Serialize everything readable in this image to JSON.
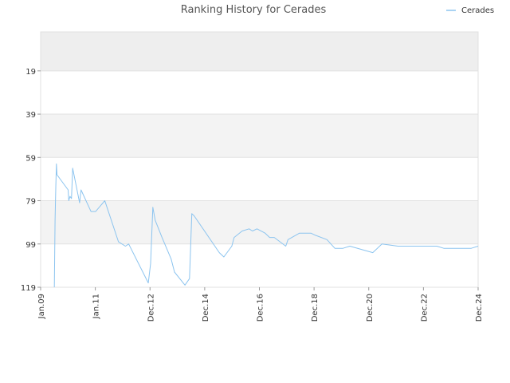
{
  "chart_data": {
    "type": "line",
    "title": "Ranking History for Cerades",
    "xlabel": "",
    "ylabel": "",
    "y_inverted": true,
    "ylim": [
      1,
      119
    ],
    "xlim": [
      "2009-01-01",
      "2024-12-01"
    ],
    "y_ticks": [
      "19",
      "39",
      "59",
      "79",
      "99",
      "119"
    ],
    "x_ticks": [
      "Jan.09",
      "Jan.11",
      "Dec.12",
      "Dec.14",
      "Dec.16",
      "Dec.18",
      "Dec.20",
      "Dec.22",
      "Dec.24"
    ],
    "legend_position": "top-right",
    "band_colors": [
      "#eeeeee",
      "#ffffff",
      "#f3f3f3",
      "#ffffff",
      "#f3f3f3",
      "#ffffff"
    ],
    "grid": true,
    "series": [
      {
        "name": "Cerades",
        "color": "#8cc4ef",
        "points": [
          [
            "2009-07-01",
            119
          ],
          [
            "2009-07-10",
            88
          ],
          [
            "2009-07-20",
            73
          ],
          [
            "2009-07-28",
            62
          ],
          [
            "2009-08-05",
            67
          ],
          [
            "2010-01-01",
            74
          ],
          [
            "2010-01-10",
            79
          ],
          [
            "2010-01-25",
            77
          ],
          [
            "2010-02-15",
            78
          ],
          [
            "2010-03-01",
            64
          ],
          [
            "2010-06-01",
            80
          ],
          [
            "2010-06-20",
            74
          ],
          [
            "2010-11-01",
            84
          ],
          [
            "2011-01-01",
            84
          ],
          [
            "2011-05-01",
            79
          ],
          [
            "2011-11-01",
            98
          ],
          [
            "2012-02-01",
            100
          ],
          [
            "2012-03-15",
            99
          ],
          [
            "2012-12-01",
            117
          ],
          [
            "2013-01-01",
            108
          ],
          [
            "2013-02-01",
            82
          ],
          [
            "2013-03-01",
            88
          ],
          [
            "2013-06-01",
            96
          ],
          [
            "2013-10-01",
            106
          ],
          [
            "2013-11-15",
            112
          ],
          [
            "2014-04-01",
            118
          ],
          [
            "2014-06-01",
            115
          ],
          [
            "2014-07-01",
            85
          ],
          [
            "2014-08-01",
            86
          ],
          [
            "2015-07-01",
            103
          ],
          [
            "2015-09-01",
            105
          ],
          [
            "2015-12-15",
            100
          ],
          [
            "2016-01-15",
            96
          ],
          [
            "2016-05-01",
            93
          ],
          [
            "2016-08-01",
            92
          ],
          [
            "2016-09-15",
            93
          ],
          [
            "2016-11-15",
            92
          ],
          [
            "2017-03-01",
            94
          ],
          [
            "2017-05-01",
            96
          ],
          [
            "2017-07-01",
            96
          ],
          [
            "2017-12-01",
            100
          ],
          [
            "2018-01-01",
            97
          ],
          [
            "2018-06-01",
            94
          ],
          [
            "2018-08-15",
            94
          ],
          [
            "2018-11-01",
            94
          ],
          [
            "2019-01-01",
            95
          ],
          [
            "2019-06-01",
            97
          ],
          [
            "2019-09-15",
            101
          ],
          [
            "2020-01-01",
            101
          ],
          [
            "2020-04-01",
            100
          ],
          [
            "2021-02-01",
            103
          ],
          [
            "2021-06-01",
            99
          ],
          [
            "2022-01-01",
            100
          ],
          [
            "2023-06-01",
            100
          ],
          [
            "2023-09-01",
            101
          ],
          [
            "2024-09-01",
            101
          ],
          [
            "2024-12-01",
            100
          ]
        ]
      }
    ]
  }
}
